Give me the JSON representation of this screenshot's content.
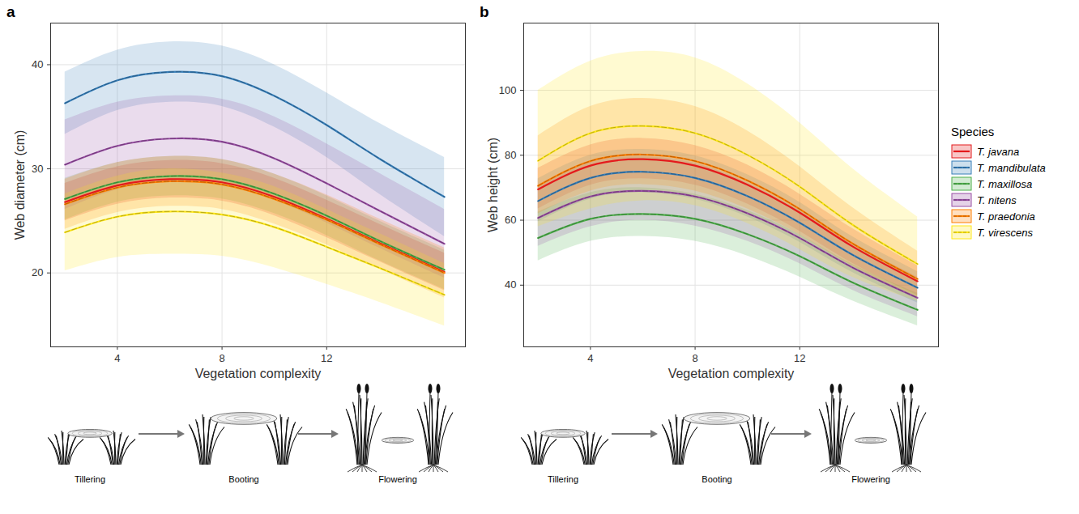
{
  "chart_data": [
    {
      "type": "line",
      "panel_label": "a",
      "xlabel": "Vegetation complexity",
      "ylabel": "Web diameter (cm)",
      "x": [
        2,
        4,
        6,
        8,
        10,
        12,
        14,
        16.5
      ],
      "xlim": [
        1.45,
        17.3
      ],
      "xticks": [
        4,
        8,
        12
      ],
      "ylim": [
        12.9,
        44
      ],
      "yticks": [
        20,
        30,
        40
      ],
      "grid": true,
      "stages": [
        "Tillering",
        "Booting",
        "Flowering"
      ],
      "series": [
        {
          "name": "T. javana",
          "color": "#e41a1c",
          "line_style": "solid",
          "values": [
            26.8,
            28.4,
            29.0,
            28.7,
            27.3,
            25.2,
            22.9,
            20.1
          ],
          "lower": [
            25.0,
            26.6,
            27.2,
            26.9,
            25.5,
            23.4,
            21.1,
            18.3
          ],
          "upper": [
            28.6,
            30.2,
            30.8,
            30.5,
            29.1,
            27.0,
            24.7,
            21.9
          ]
        },
        {
          "name": "T. mandibulata",
          "color": "#377eb8",
          "line_style": "dashed",
          "values": [
            36.3,
            38.5,
            39.3,
            38.9,
            37.0,
            34.2,
            31.0,
            27.3
          ],
          "lower": [
            33.3,
            35.6,
            36.4,
            36.0,
            34.0,
            31.1,
            27.6,
            23.5
          ],
          "upper": [
            39.3,
            41.4,
            42.2,
            41.8,
            40.0,
            37.3,
            34.4,
            31.1
          ]
        },
        {
          "name": "T. maxillosa",
          "color": "#4daf4a",
          "line_style": "dashed",
          "values": [
            27.1,
            28.7,
            29.3,
            29.0,
            27.6,
            25.5,
            23.1,
            20.3
          ],
          "lower": [
            25.1,
            26.8,
            27.4,
            27.1,
            25.7,
            23.6,
            21.2,
            18.4
          ],
          "upper": [
            29.1,
            30.6,
            31.2,
            30.9,
            29.5,
            27.4,
            25.0,
            22.2
          ]
        },
        {
          "name": "T. nitens",
          "color": "#984ea3",
          "line_style": "dashed",
          "values": [
            30.4,
            32.2,
            32.9,
            32.6,
            31.0,
            28.6,
            26.0,
            22.8
          ],
          "lower": [
            26.1,
            28.0,
            28.8,
            28.5,
            27.0,
            24.8,
            22.4,
            19.5
          ],
          "upper": [
            34.7,
            36.4,
            37.0,
            36.7,
            35.0,
            32.4,
            29.6,
            26.1
          ]
        },
        {
          "name": "T. praedonia",
          "color": "#ff7f00",
          "line_style": "dashed",
          "values": [
            26.6,
            28.2,
            28.8,
            28.5,
            27.1,
            25.1,
            22.8,
            20.0
          ],
          "lower": [
            24.2,
            25.8,
            26.4,
            26.1,
            24.7,
            22.7,
            20.4,
            17.6
          ],
          "upper": [
            29.0,
            30.6,
            31.2,
            30.9,
            29.5,
            27.5,
            25.2,
            22.4
          ]
        },
        {
          "name": "T. virescens",
          "color": "#ffe81a",
          "line_style": "dashed",
          "values": [
            23.9,
            25.4,
            25.9,
            25.6,
            24.4,
            22.5,
            20.5,
            17.9
          ],
          "lower": [
            20.2,
            21.5,
            21.8,
            21.6,
            20.5,
            18.9,
            17.2,
            14.9
          ],
          "upper": [
            27.6,
            29.3,
            30.0,
            29.6,
            28.3,
            26.1,
            23.8,
            20.9
          ]
        }
      ]
    },
    {
      "type": "line",
      "panel_label": "b",
      "xlabel": "Vegetation complexity",
      "ylabel": "Web height (cm)",
      "x": [
        2,
        4,
        6,
        8,
        10,
        12,
        14,
        16.5
      ],
      "xlim": [
        1.45,
        17.3
      ],
      "xticks": [
        4,
        8,
        12
      ],
      "ylim": [
        21,
        120.7
      ],
      "yticks": [
        40,
        60,
        80,
        100
      ],
      "grid": true,
      "legend": "right",
      "legend_title": "Species",
      "stages": [
        "Tillering",
        "Booting",
        "Flowering"
      ],
      "series": [
        {
          "name": "T. javana",
          "color": "#e41a1c",
          "line_style": "solid",
          "values": [
            69.5,
            76.8,
            78.8,
            76.8,
            70.9,
            62.3,
            52.0,
            41.2
          ],
          "lower": [
            63.5,
            70.8,
            72.8,
            70.8,
            65.0,
            56.6,
            46.8,
            36.8
          ],
          "upper": [
            76.0,
            83.2,
            85.2,
            83.0,
            77.0,
            68.0,
            57.5,
            46.0
          ]
        },
        {
          "name": "T. mandibulata",
          "color": "#377eb8",
          "line_style": "dashed",
          "values": [
            65.9,
            73.0,
            74.9,
            73.0,
            67.4,
            59.2,
            49.4,
            39.2
          ],
          "lower": [
            59.5,
            66.5,
            68.5,
            66.5,
            61.0,
            53.2,
            44.0,
            34.5
          ],
          "upper": [
            72.8,
            80.0,
            81.8,
            79.8,
            74.0,
            65.5,
            55.0,
            44.2
          ]
        },
        {
          "name": "T. maxillosa",
          "color": "#4daf4a",
          "line_style": "dashed",
          "values": [
            54.5,
            60.4,
            61.9,
            60.4,
            55.7,
            48.9,
            40.9,
            32.4
          ],
          "lower": [
            47.5,
            53.5,
            55.0,
            53.5,
            49.0,
            42.5,
            35.2,
            27.5
          ],
          "upper": [
            62.5,
            68.5,
            70.0,
            68.0,
            63.0,
            55.5,
            46.5,
            37.5
          ]
        },
        {
          "name": "T. nitens",
          "color": "#984ea3",
          "line_style": "dashed",
          "values": [
            60.7,
            67.3,
            69.0,
            67.3,
            62.1,
            54.5,
            45.5,
            36.1
          ],
          "lower": [
            52.0,
            58.0,
            60.0,
            58.2,
            53.5,
            46.6,
            38.5,
            30.3
          ],
          "upper": [
            70.5,
            77.8,
            79.5,
            77.5,
            71.5,
            63.0,
            53.0,
            42.5
          ]
        },
        {
          "name": "T. praedonia",
          "color": "#ff7f00",
          "line_style": "dashed",
          "values": [
            70.6,
            78.2,
            80.2,
            78.2,
            72.2,
            63.4,
            52.9,
            41.9
          ],
          "lower": [
            62.0,
            69.0,
            71.0,
            69.0,
            63.5,
            55.5,
            46.0,
            36.0
          ],
          "upper": [
            86.0,
            95.0,
            97.5,
            95.0,
            87.5,
            76.5,
            64.0,
            50.5
          ]
        },
        {
          "name": "T. virescens",
          "color": "#ffe81a",
          "line_style": "dashed",
          "values": [
            78.3,
            86.8,
            89.0,
            86.8,
            80.1,
            70.3,
            58.7,
            46.5
          ],
          "lower": [
            58.0,
            63.5,
            66.0,
            64.5,
            59.0,
            51.0,
            42.5,
            35.0
          ],
          "upper": [
            100.0,
            109.0,
            112.0,
            110.0,
            102.0,
            90.0,
            76.0,
            61.0
          ]
        }
      ]
    }
  ]
}
